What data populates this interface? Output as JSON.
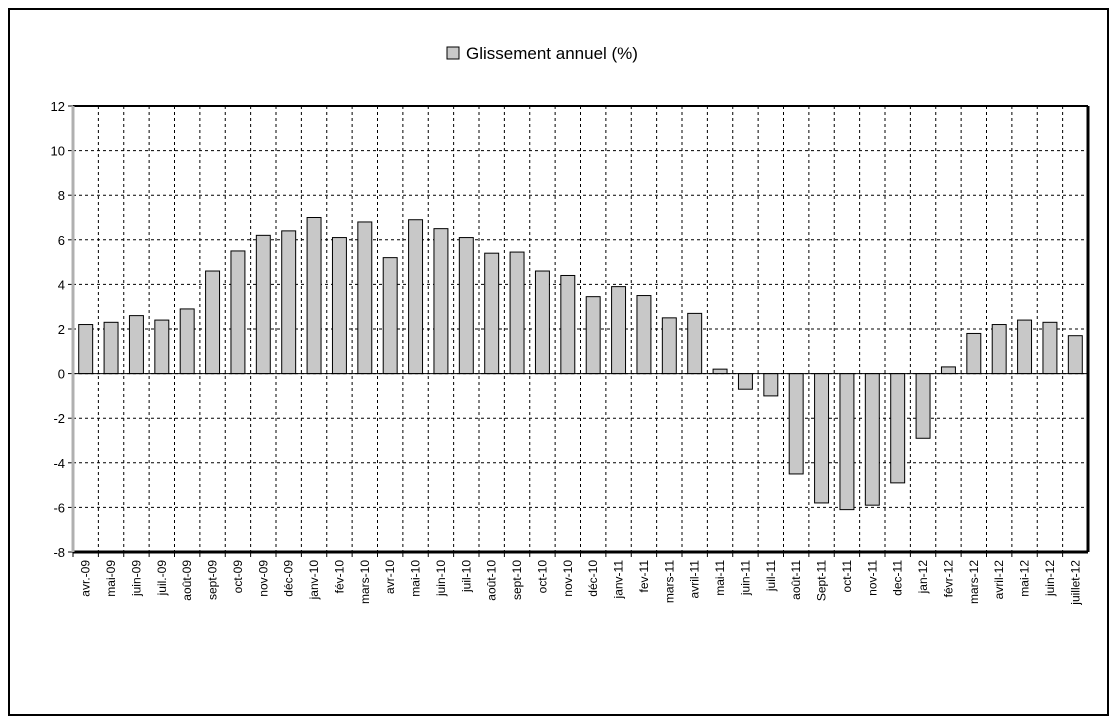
{
  "chart_data": {
    "type": "bar",
    "legend": "Glissement annuel (%)",
    "legend_position": "top-center",
    "grid": true,
    "ylim": [
      -8,
      12
    ],
    "yticks": [
      12,
      10,
      8,
      6,
      4,
      2,
      0,
      -2,
      -4,
      -6,
      -8
    ],
    "colors": {
      "bar_fill": "#c8c8c8",
      "bar_stroke": "#000000",
      "grid": "#000000"
    },
    "categories": [
      "avr.-09",
      "mai-09",
      "juin-09",
      "juil.-09",
      "août-09",
      "sept-09",
      "oct-09",
      "nov-09",
      "déc-09",
      "janv-10",
      "fév-10",
      "mars-10",
      "avr-10",
      "mai-10",
      "juin-10",
      "juil-10",
      "août-10",
      "sept-10",
      "oct-10",
      "nov-10",
      "déc-10",
      "janv-11",
      "fev-11",
      "mars-11",
      "avril-11",
      "mai-11",
      "juin-11",
      "juil-11",
      "août-11",
      "Sept-11",
      "oct-11",
      "nov-11",
      "dec-11",
      "jan-12",
      "févr-12",
      "mars-12",
      "avril-12",
      "mai-12",
      "juin-12",
      "juillet-12"
    ],
    "series": [
      {
        "name": "Glissement annuel (%)",
        "values": [
          2.2,
          2.3,
          2.6,
          2.4,
          2.9,
          4.6,
          5.5,
          6.2,
          6.4,
          7.0,
          6.1,
          6.8,
          5.2,
          6.9,
          6.5,
          6.1,
          5.4,
          5.45,
          4.6,
          4.4,
          3.45,
          3.9,
          3.5,
          2.5,
          2.7,
          0.2,
          -0.7,
          -1.0,
          -4.5,
          -5.8,
          -6.1,
          -5.9,
          -4.9,
          -2.9,
          0.3,
          1.8,
          2.2,
          2.4,
          2.3,
          1.7
        ]
      }
    ]
  }
}
